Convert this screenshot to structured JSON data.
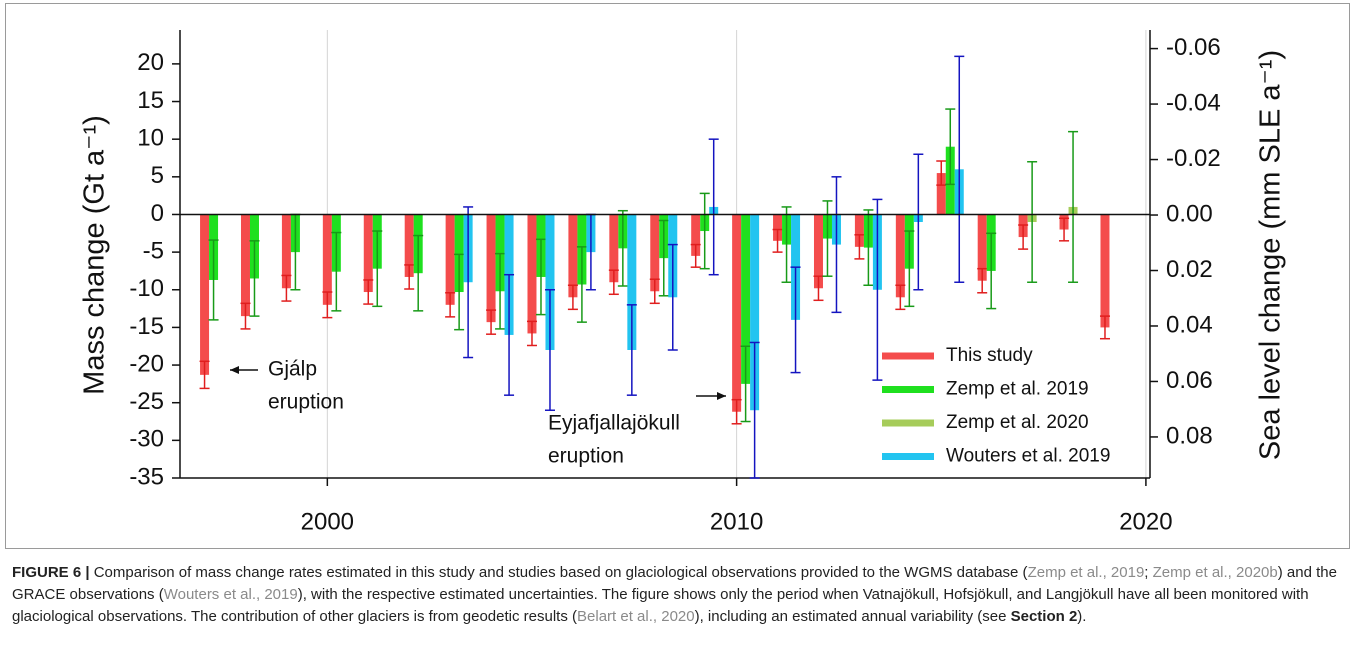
{
  "chart_data": {
    "type": "bar",
    "x": [
      1997,
      1998,
      1999,
      2000,
      2001,
      2002,
      2003,
      2004,
      2005,
      2006,
      2007,
      2008,
      2009,
      2010,
      2011,
      2012,
      2013,
      2014,
      2015,
      2016,
      2017,
      2018,
      2019
    ],
    "series": [
      {
        "name": "This study",
        "color": "#f44c4c",
        "error_color": "#e01e1e",
        "values": [
          -21.3,
          -13.5,
          -9.8,
          -12,
          -10.3,
          -8.3,
          -12,
          -14.3,
          -15.8,
          -11,
          -9,
          -10.2,
          -5.5,
          -26.2,
          -3.5,
          -9.8,
          -4.3,
          -11,
          5.5,
          -8.8,
          -3,
          -2,
          -15
        ],
        "errors": [
          1.8,
          1.7,
          1.7,
          1.7,
          1.6,
          1.6,
          1.6,
          1.6,
          1.6,
          1.6,
          1.6,
          1.6,
          1.5,
          1.6,
          1.5,
          1.6,
          1.6,
          1.6,
          1.6,
          1.6,
          1.6,
          1.5,
          1.5
        ]
      },
      {
        "name": "Zemp et al. 2019",
        "color": "#1fe01f",
        "error_color": "#189a18",
        "values": [
          -8.7,
          -8.5,
          -5,
          -7.6,
          -7.2,
          -7.8,
          -10.3,
          -10.2,
          -8.3,
          -9.3,
          -4.5,
          -5.8,
          -2.2,
          -22.5,
          -4,
          -3.2,
          -4.4,
          -7.2,
          9,
          -7.5,
          null,
          null,
          null
        ],
        "errors": [
          5.3,
          5,
          5,
          5.2,
          5,
          5,
          5,
          5,
          5,
          5,
          5,
          5,
          5,
          5,
          5,
          5,
          5,
          5,
          5,
          5,
          null,
          null,
          null
        ]
      },
      {
        "name": "Zemp et al. 2020",
        "color": "#a6cc5a",
        "error_color": "#189a18",
        "values": [
          null,
          null,
          null,
          null,
          null,
          null,
          null,
          null,
          null,
          null,
          null,
          null,
          null,
          null,
          null,
          null,
          null,
          null,
          null,
          null,
          -1,
          1,
          null
        ],
        "errors": [
          null,
          null,
          null,
          null,
          null,
          null,
          null,
          null,
          null,
          null,
          null,
          null,
          null,
          null,
          null,
          null,
          null,
          null,
          null,
          null,
          8,
          10,
          null
        ]
      },
      {
        "name": "Wouters et al. 2019",
        "color": "#22c4f0",
        "error_color": "#1414c0",
        "values": [
          null,
          null,
          null,
          null,
          null,
          null,
          -9,
          -16,
          -18,
          -5,
          -18,
          -11,
          1,
          -26,
          -14,
          -4,
          -10,
          -1,
          6,
          null,
          null,
          null,
          null
        ],
        "errors": [
          null,
          null,
          null,
          null,
          null,
          null,
          10,
          8,
          8,
          5,
          6,
          7,
          9,
          9,
          7,
          9,
          12,
          9,
          15,
          null,
          null,
          null,
          null
        ]
      }
    ],
    "y_label": "Mass change (Gt a⁻¹)",
    "y2_label": "Sea level change (mm SLE a⁻¹)",
    "xlim": [
      1996.4,
      2020.1
    ],
    "xticks": [
      2000,
      2010,
      2020
    ],
    "ylim": [
      -35,
      24.5
    ],
    "yticks": [
      20,
      15,
      10,
      5,
      0,
      -5,
      -10,
      -15,
      -20,
      -25,
      -30,
      -35
    ],
    "y2lim": [
      0.0948,
      -0.0667
    ],
    "y2ticks": [
      -0.06,
      -0.04,
      -0.02,
      {
        "value": 0,
        "label": "0.00"
      },
      0.02,
      0.04,
      0.06,
      0.08
    ],
    "grid": "x",
    "legend": "lower right",
    "annotations": [
      {
        "lines": [
          "Gjálp",
          "eruption"
        ],
        "x": 1997
      },
      {
        "lines": [
          "Eyjafjallajökull",
          "eruption"
        ],
        "x": 2010
      }
    ]
  },
  "caption": {
    "label": "FIGURE 6 |",
    "parts": [
      "Comparison of mass change rates estimated in this study and studies based on glaciological observations provided to the WGMS database (",
      "Zemp et al., 2019",
      "; ",
      "Zemp et al., 2020b",
      ") and the GRACE observations (",
      "Wouters et al., 2019",
      "), with the respective estimated uncertainties. The figure shows only the period when Vatnajökull, Hofsjökull, and Langjökull have all been monitored with glaciological observations. The contribution of other glaciers is from geodetic results (",
      "Belart et al., 2020",
      "), including an estimated annual variability (see ",
      "Section 2",
      ")."
    ]
  }
}
